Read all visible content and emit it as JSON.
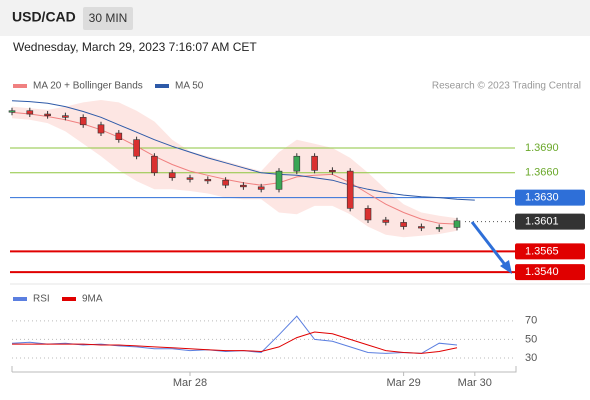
{
  "header": {
    "symbol": "USD/CAD",
    "interval": "30 MIN",
    "timestamp": "Wednesday, March 29, 2023 7:16:07 AM CET"
  },
  "attribution": "Research © 2023 Trading Central",
  "chart_data": [
    {
      "type": "candlestick",
      "categories": [
        null,
        null,
        null,
        null,
        null,
        null,
        null,
        null,
        null,
        null,
        "Mar 28",
        null,
        null,
        null,
        null,
        null,
        null,
        null,
        null,
        null,
        null,
        null,
        "Mar 29",
        null,
        null,
        null,
        "Mar 30"
      ],
      "ylim": [
        1.3528,
        1.3754
      ],
      "series": [
        {
          "name": "Price",
          "color": "#2e2e2e",
          "values": [
            1.3735,
            1.3731,
            1.3729,
            1.3727,
            1.3718,
            1.3708,
            1.37,
            1.368,
            1.366,
            1.3654,
            1.3652,
            1.3651,
            1.3645,
            1.3643,
            1.364,
            1.3662,
            1.368,
            1.3663,
            1.3662,
            1.3617,
            1.3603,
            1.36,
            1.3595,
            1.3594,
            1.3594,
            1.3602,
            null
          ]
        },
        {
          "name": "MA 20 + Bollinger Bands",
          "color": "#f08080",
          "values": [
            1.3733,
            1.3731,
            1.3728,
            1.3724,
            1.3719,
            1.3712,
            1.3703,
            1.3692,
            1.368,
            1.367,
            1.3662,
            1.3657,
            1.3652,
            1.3648,
            1.3645,
            1.3648,
            1.3655,
            1.3657,
            1.3658,
            1.3648,
            1.3635,
            1.3622,
            1.3612,
            1.3604,
            1.3599,
            1.3598,
            null
          ],
          "upper": [
            1.374,
            1.3738,
            1.3736,
            1.374,
            1.3745,
            1.3748,
            1.3745,
            1.3735,
            1.3722,
            1.37,
            1.3686,
            1.368,
            1.3674,
            1.3668,
            1.3662,
            1.3685,
            1.37,
            1.3695,
            1.369,
            1.3678,
            1.366,
            1.364,
            1.3622,
            1.3612,
            1.3608,
            1.3605,
            null
          ],
          "lower": [
            1.3726,
            1.3724,
            1.372,
            1.371,
            1.3695,
            1.368,
            1.3663,
            1.365,
            1.364,
            1.364,
            1.3638,
            1.3635,
            1.363,
            1.3628,
            1.3628,
            1.3612,
            1.361,
            1.362,
            1.362,
            1.361,
            1.3595,
            1.3585,
            1.3582,
            1.3584,
            1.3586,
            1.359,
            null
          ]
        },
        {
          "name": "MA 50",
          "color": "#2e5aa8",
          "values": [
            1.3747,
            1.3746,
            1.3744,
            1.374,
            1.3734,
            1.3727,
            1.3718,
            1.3709,
            1.37,
            1.3692,
            1.3685,
            1.3678,
            1.3672,
            1.3666,
            1.366,
            1.3658,
            1.3657,
            1.3654,
            1.3651,
            1.3645,
            1.364,
            1.3636,
            1.3633,
            1.3631,
            1.363,
            1.3628,
            1.3627
          ]
        }
      ],
      "levels": [
        {
          "value": 1.369,
          "label": "1.3690",
          "color": "#8dc63f"
        },
        {
          "value": 1.366,
          "label": "1.3660",
          "color": "#8dc63f"
        },
        {
          "value": 1.363,
          "label": "1.3630",
          "color": "#2e6fd8"
        },
        {
          "value": 1.3601,
          "label": "1.3601",
          "color": "#333333"
        },
        {
          "value": 1.3565,
          "label": "1.3565",
          "color": "#e00000"
        },
        {
          "value": 1.354,
          "label": "1.3540",
          "color": "#e00000"
        }
      ]
    },
    {
      "type": "line",
      "ylim": [
        15,
        87
      ],
      "yticks": [
        70,
        50,
        30
      ],
      "series": [
        {
          "name": "RSI",
          "color": "#5b7fe0",
          "values": [
            46,
            47,
            45,
            46,
            44,
            45,
            43,
            42,
            40,
            40,
            38,
            39,
            37,
            38,
            36,
            55,
            75,
            50,
            48,
            42,
            36,
            35,
            36,
            35,
            46,
            44,
            null
          ]
        },
        {
          "name": "9MA",
          "color": "#e00000",
          "values": [
            45,
            45,
            45,
            45,
            45,
            44,
            44,
            43,
            42,
            41,
            40,
            39,
            38,
            38,
            37,
            42,
            52,
            58,
            56,
            50,
            44,
            38,
            36,
            35,
            37,
            41,
            null
          ]
        }
      ]
    }
  ]
}
